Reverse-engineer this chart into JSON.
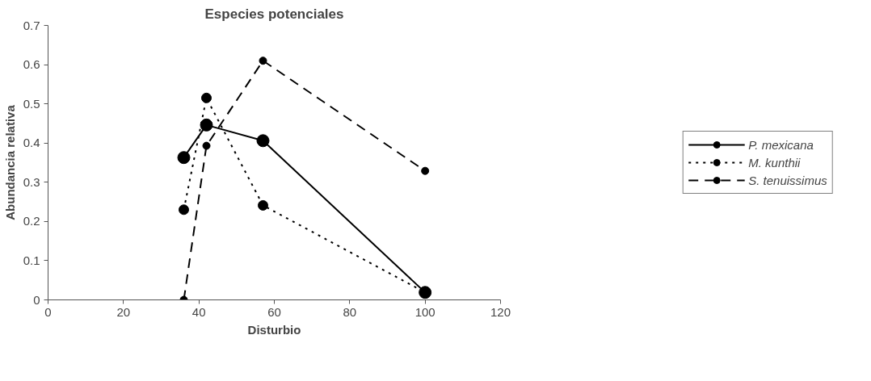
{
  "chart_data": {
    "type": "line",
    "title": "Especies potenciales",
    "xlabel": "Disturbio",
    "ylabel": "Abundancia relativa",
    "x": [
      36,
      42,
      57,
      100
    ],
    "series": [
      {
        "name": "P. mexicana",
        "color": "#000000",
        "line_style": "solid",
        "values": [
          0.363,
          0.446,
          0.406,
          0.019
        ]
      },
      {
        "name": "M. kunthii",
        "color": "#000000",
        "line_style": "dotted",
        "values": [
          0.23,
          0.515,
          0.241,
          0.019
        ]
      },
      {
        "name": "S. tenuissimus",
        "color": "#000000",
        "line_style": "dashed",
        "values": [
          0,
          0.393,
          0.61,
          0.329
        ]
      }
    ],
    "xlim": [
      0,
      120
    ],
    "xticks": [
      0,
      20,
      40,
      60,
      80,
      100,
      120
    ],
    "ylim": [
      0,
      0.7
    ],
    "yticks": [
      0,
      0.1,
      0.2,
      0.3,
      0.4,
      0.5,
      0.6,
      0.7
    ],
    "grid": false,
    "legend": "right",
    "marker": "circle"
  }
}
